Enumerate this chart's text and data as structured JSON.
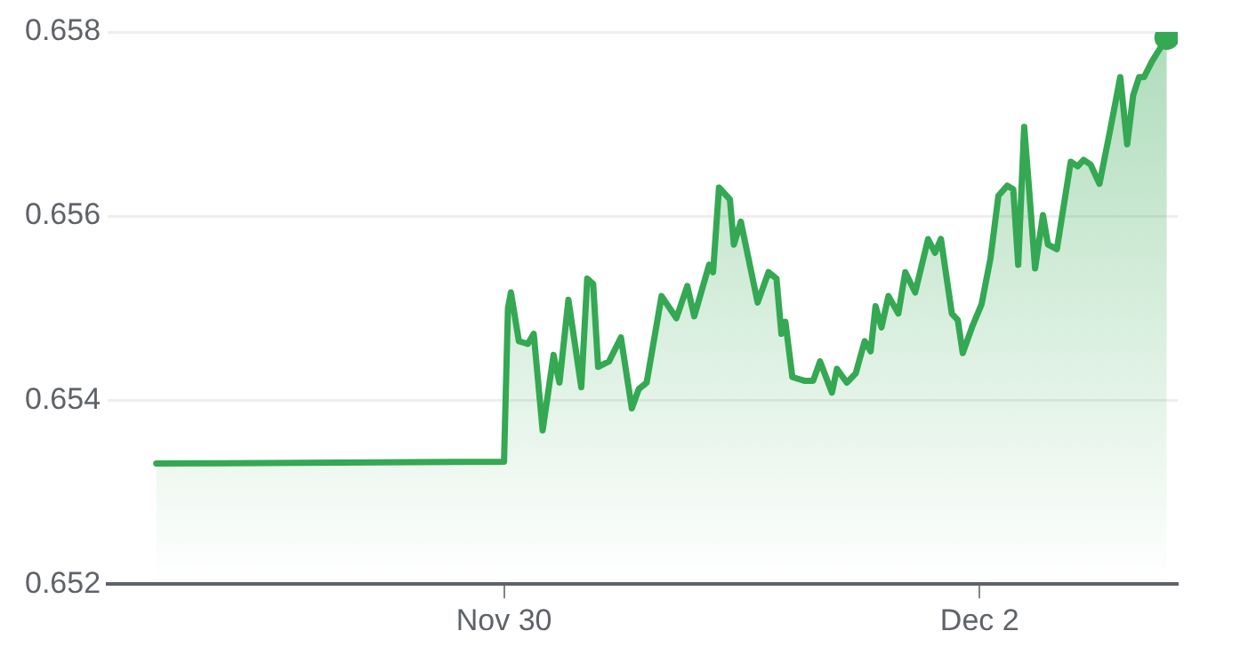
{
  "chart_data": {
    "type": "area",
    "color": "#34a853",
    "x": [
      "--11-28T12:54",
      "--11-30T00:00",
      "--11-30T00:24",
      "--11-30T00:42",
      "--11-30T01:30",
      "--11-30T02:24",
      "--11-30T03:00",
      "--11-30T03:54",
      "--11-30T05:00",
      "--11-30T05:36",
      "--11-30T06:30",
      "--11-30T07:48",
      "--11-30T08:24",
      "--11-30T09:00",
      "--11-30T09:30",
      "--11-30T10:36",
      "--11-30T11:48",
      "--11-30T12:54",
      "--11-30T13:36",
      "--11-30T14:24",
      "--11-30T15:54",
      "--11-30T17:24",
      "--11-30T18:30",
      "--11-30T19:12",
      "--11-30T20:42",
      "--11-30T21:06",
      "--11-30T21:42",
      "--11-30T22:48",
      "--11-30T23:12",
      "--11-30T23:54",
      "--12-01T01:36",
      "--12-01T02:42",
      "--12-01T03:30",
      "--12-01T04:00",
      "--12-01T04:24",
      "--12-01T05:06",
      "--12-01T06:18",
      "--12-01T07:12",
      "--12-01T07:54",
      "--12-01T09:06",
      "--12-01T09:36",
      "--12-01T10:36",
      "--12-01T11:30",
      "--12-01T12:24",
      "--12-01T13:00",
      "--12-01T13:30",
      "--12-01T14:06",
      "--12-01T14:48",
      "--12-01T15:48",
      "--12-01T16:30",
      "--12-01T17:30",
      "--12-01T18:48",
      "--12-01T19:30",
      "--12-01T20:06",
      "--12-01T21:12",
      "--12-01T21:48",
      "--12-01T22:18",
      "--12-01T23:18",
      "--12-02T00:12",
      "--12-02T01:06",
      "--12-02T01:54",
      "--12-02T02:48",
      "--12-02T03:24",
      "--12-02T03:54",
      "--12-02T04:30",
      "--12-02T05:00",
      "--12-02T05:36",
      "--12-02T06:24",
      "--12-02T06:54",
      "--12-02T07:48",
      "--12-02T09:12",
      "--12-02T09:54",
      "--12-02T10:30",
      "--12-02T11:12",
      "--12-02T12:06",
      "--12-02T13:06",
      "--12-02T14:12",
      "--12-02T14:54",
      "--12-02T15:30",
      "--12-02T16:06",
      "--12-02T16:36",
      "--12-02T17:24",
      "--12-02T18:54"
    ],
    "values": [
      0.65331,
      0.65333,
      0.655,
      0.65517,
      0.65464,
      0.65461,
      0.65472,
      0.65367,
      0.65449,
      0.65419,
      0.65509,
      0.65414,
      0.65532,
      0.65526,
      0.65436,
      0.65442,
      0.65468,
      0.65391,
      0.65412,
      0.65419,
      0.65513,
      0.65489,
      0.65524,
      0.65491,
      0.65547,
      0.65539,
      0.65631,
      0.65618,
      0.65569,
      0.65594,
      0.65506,
      0.65539,
      0.65532,
      0.65472,
      0.65485,
      0.65425,
      0.65421,
      0.65421,
      0.65442,
      0.65408,
      0.65434,
      0.65419,
      0.65429,
      0.65464,
      0.65453,
      0.65502,
      0.65479,
      0.65513,
      0.65494,
      0.65539,
      0.65517,
      0.65575,
      0.6556,
      0.65575,
      0.65494,
      0.65487,
      0.65451,
      0.65481,
      0.65504,
      0.65554,
      0.65622,
      0.65633,
      0.65629,
      0.65547,
      0.65697,
      0.65629,
      0.65543,
      0.65601,
      0.65569,
      0.65564,
      0.65659,
      0.65654,
      0.65661,
      0.65656,
      0.65635,
      0.65689,
      0.65751,
      0.65678,
      0.65731,
      0.65751,
      0.65751,
      0.65768,
      0.65794
    ],
    "xlim": [
      "--11-28T08:00",
      "--12-02T20:00"
    ],
    "xticks": [
      {
        "value": "--11-30",
        "label": "Nov 30"
      },
      {
        "value": "--12-02",
        "label": "Dec 2"
      }
    ],
    "ylim": [
      0.652,
      0.658
    ],
    "yticks": [
      0.652,
      0.654,
      0.656,
      0.658
    ],
    "grid": "y",
    "legend": false,
    "marker": "none",
    "line_style": "solid"
  }
}
